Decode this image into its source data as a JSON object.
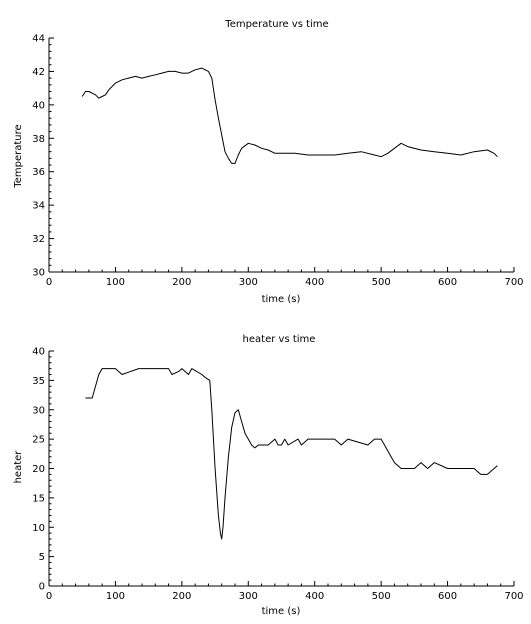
{
  "chart_data": [
    {
      "type": "line",
      "title": "Temperature vs time",
      "xlabel": "time (s)",
      "ylabel": "Temperature",
      "xlim": [
        0,
        700
      ],
      "ylim": [
        30,
        44
      ],
      "xticks": [
        0,
        100,
        200,
        300,
        400,
        500,
        600,
        700
      ],
      "yticks": [
        30,
        32,
        34,
        36,
        38,
        40,
        42,
        44
      ],
      "grid": false,
      "series": [
        {
          "color": "#000000",
          "x": [
            50,
            55,
            60,
            65,
            70,
            75,
            80,
            85,
            90,
            95,
            100,
            110,
            120,
            130,
            140,
            150,
            160,
            170,
            180,
            190,
            200,
            210,
            220,
            230,
            240,
            245,
            250,
            255,
            260,
            265,
            270,
            275,
            280,
            285,
            290,
            300,
            310,
            320,
            330,
            340,
            350,
            370,
            390,
            410,
            430,
            450,
            470,
            490,
            500,
            510,
            520,
            530,
            540,
            560,
            580,
            600,
            620,
            640,
            660,
            670,
            675
          ],
          "y": [
            40.5,
            40.8,
            40.8,
            40.7,
            40.6,
            40.4,
            40.5,
            40.6,
            40.9,
            41.1,
            41.3,
            41.5,
            41.6,
            41.7,
            41.6,
            41.7,
            41.8,
            41.9,
            42.0,
            42.0,
            41.9,
            41.9,
            42.1,
            42.2,
            42.0,
            41.6,
            40.3,
            39.2,
            38.2,
            37.2,
            36.8,
            36.5,
            36.5,
            37.0,
            37.4,
            37.7,
            37.6,
            37.4,
            37.3,
            37.1,
            37.1,
            37.1,
            37.0,
            37.0,
            37.0,
            37.1,
            37.2,
            37.0,
            36.9,
            37.1,
            37.4,
            37.7,
            37.5,
            37.3,
            37.2,
            37.1,
            37.0,
            37.2,
            37.3,
            37.1,
            36.9
          ]
        }
      ]
    },
    {
      "type": "line",
      "title": "heater vs time",
      "xlabel": "time (s)",
      "ylabel": "heater",
      "xlim": [
        0,
        700
      ],
      "ylim": [
        0,
        40
      ],
      "xticks": [
        0,
        100,
        200,
        300,
        400,
        500,
        600,
        700
      ],
      "yticks": [
        0,
        5,
        10,
        15,
        20,
        25,
        30,
        35,
        40
      ],
      "grid": false,
      "series": [
        {
          "color": "#000000",
          "x": [
            55,
            65,
            70,
            75,
            80,
            100,
            110,
            135,
            180,
            185,
            195,
            200,
            210,
            215,
            230,
            235,
            242,
            245,
            250,
            255,
            258,
            260,
            262,
            265,
            270,
            275,
            280,
            285,
            290,
            295,
            300,
            305,
            310,
            315,
            320,
            325,
            330,
            340,
            345,
            350,
            355,
            360,
            375,
            380,
            390,
            400,
            430,
            440,
            450,
            480,
            490,
            500,
            505,
            510,
            515,
            520,
            530,
            550,
            560,
            570,
            580,
            600,
            640,
            650,
            660,
            670,
            675
          ],
          "y": [
            32,
            32,
            34,
            36,
            37,
            37,
            36,
            37,
            37,
            36,
            36.5,
            37,
            36,
            37,
            36,
            35.5,
            35,
            30,
            20,
            12,
            9,
            8,
            10,
            15,
            22,
            27,
            29.5,
            30,
            28,
            26,
            25,
            24,
            23.5,
            24,
            24,
            24,
            24,
            25,
            24,
            24,
            25,
            24,
            25,
            24,
            25,
            25,
            25,
            24,
            25,
            24,
            25,
            25,
            24,
            23,
            22,
            21,
            20,
            20,
            21,
            20,
            21,
            20,
            20,
            19,
            19,
            20,
            20.5
          ]
        }
      ]
    }
  ]
}
